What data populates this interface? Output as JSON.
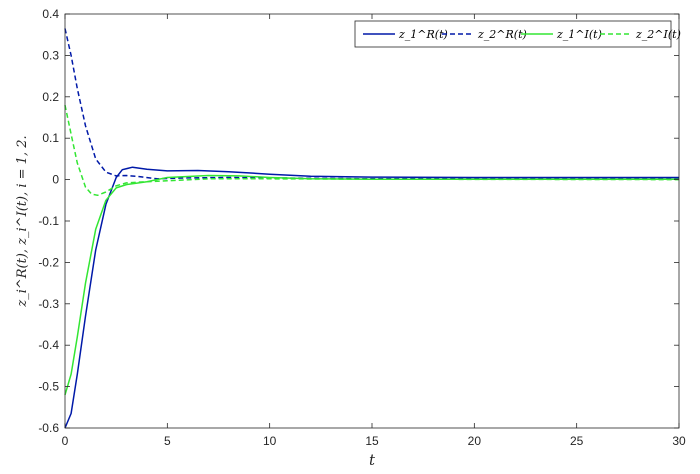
{
  "chart_data": {
    "type": "line",
    "title": "",
    "xlabel": "t",
    "ylabel": "z_i^R(t), z_i^I(t), i = 1, 2.",
    "xlim": [
      0,
      30
    ],
    "ylim": [
      -0.6,
      0.4
    ],
    "x_ticks": [
      0,
      5,
      10,
      15,
      20,
      25,
      30
    ],
    "y_ticks": [
      -0.6,
      -0.5,
      -0.4,
      -0.3,
      -0.2,
      -0.1,
      0,
      0.1,
      0.2,
      0.3,
      0.4
    ],
    "x_tick_labels": [
      "0",
      "5",
      "10",
      "15",
      "20",
      "25",
      "30"
    ],
    "y_tick_labels": [
      "-0.6",
      "-0.5",
      "-0.4",
      "-0.3",
      "-0.2",
      "-0.1",
      "0",
      "0.1",
      "0.2",
      "0.3",
      "0.4"
    ],
    "grid": false,
    "legend_position": "top-right",
    "legend_orientation": "horizontal",
    "series": [
      {
        "name": "z_1^R(t)",
        "color": "#0019a8",
        "dash": "solid",
        "points": [
          [
            0,
            -0.6
          ],
          [
            0.3,
            -0.565
          ],
          [
            0.6,
            -0.47
          ],
          [
            1.0,
            -0.33
          ],
          [
            1.5,
            -0.17
          ],
          [
            2.0,
            -0.06
          ],
          [
            2.5,
            0.005
          ],
          [
            2.8,
            0.024
          ],
          [
            3.3,
            0.03
          ],
          [
            4.0,
            0.025
          ],
          [
            5.0,
            0.021
          ],
          [
            6.5,
            0.022
          ],
          [
            8.0,
            0.019
          ],
          [
            10.0,
            0.013
          ],
          [
            12.0,
            0.008
          ],
          [
            15.0,
            0.006
          ],
          [
            20.0,
            0.005
          ],
          [
            30.0,
            0.005
          ]
        ]
      },
      {
        "name": "z_2^R(t)",
        "color": "#0019a8",
        "dash": "dashed",
        "points": [
          [
            0,
            0.365
          ],
          [
            0.3,
            0.3
          ],
          [
            0.6,
            0.22
          ],
          [
            1.0,
            0.13
          ],
          [
            1.5,
            0.05
          ],
          [
            2.0,
            0.018
          ],
          [
            2.5,
            0.009
          ],
          [
            3.0,
            0.01
          ],
          [
            3.5,
            0.008
          ],
          [
            4.5,
            0.002
          ],
          [
            6.0,
            0.004
          ],
          [
            8.0,
            0.005
          ],
          [
            10.0,
            0.004
          ],
          [
            15.0,
            0.002
          ],
          [
            30.0,
            0.002
          ]
        ]
      },
      {
        "name": "z_1^I(t)",
        "color": "#33e633",
        "dash": "solid",
        "points": [
          [
            0,
            -0.52
          ],
          [
            0.3,
            -0.47
          ],
          [
            0.6,
            -0.38
          ],
          [
            1.0,
            -0.25
          ],
          [
            1.5,
            -0.12
          ],
          [
            2.0,
            -0.05
          ],
          [
            2.5,
            -0.02
          ],
          [
            3.0,
            -0.012
          ],
          [
            4.0,
            -0.005
          ],
          [
            5.0,
            0.005
          ],
          [
            7.0,
            0.01
          ],
          [
            8.5,
            0.009
          ],
          [
            10.0,
            0.005
          ],
          [
            12.0,
            0.002
          ],
          [
            15.0,
            0.001
          ],
          [
            30.0,
            0.001
          ]
        ]
      },
      {
        "name": "z_2^I(t)",
        "color": "#33e633",
        "dash": "dashed",
        "points": [
          [
            0,
            0.18
          ],
          [
            0.3,
            0.11
          ],
          [
            0.6,
            0.04
          ],
          [
            1.0,
            -0.018
          ],
          [
            1.3,
            -0.035
          ],
          [
            1.6,
            -0.038
          ],
          [
            2.0,
            -0.03
          ],
          [
            2.5,
            -0.015
          ],
          [
            3.0,
            -0.008
          ],
          [
            4.0,
            -0.005
          ],
          [
            5.0,
            -0.003
          ],
          [
            7.0,
            0.002
          ],
          [
            10.0,
            0.002
          ],
          [
            15.0,
            0.001
          ],
          [
            30.0,
            0.0
          ]
        ]
      }
    ]
  }
}
